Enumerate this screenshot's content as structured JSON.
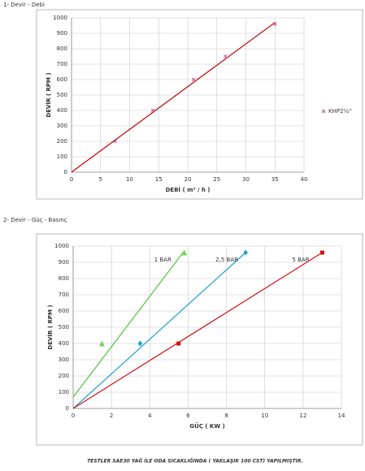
{
  "chart_data": [
    {
      "type": "scatter",
      "title": "1- Devir - Debi",
      "xlabel": "DEBİ ( m³ / h )",
      "ylabel": "DEVİR ( RPM )",
      "xlim": [
        0,
        40
      ],
      "xticks": [
        0,
        5,
        10,
        15,
        20,
        25,
        30,
        35,
        40
      ],
      "ylim": [
        0,
        1000
      ],
      "yticks": [
        0,
        100,
        200,
        300,
        400,
        500,
        600,
        700,
        800,
        900,
        1000
      ],
      "grid": true,
      "legend": "right",
      "series": [
        {
          "name": "KHP2½\"",
          "color": "#c0609a",
          "marker": "x",
          "x": [
            7.5,
            14,
            21,
            26.5,
            35
          ],
          "values": [
            200,
            400,
            600,
            750,
            960
          ],
          "line_color": "#c00000",
          "line_x": [
            0,
            35
          ],
          "line_values": [
            0,
            970
          ]
        }
      ]
    },
    {
      "type": "scatter",
      "title": "2- Devir - Güç - Basınç",
      "xlabel": "GÜÇ ( KW )",
      "ylabel": "DEVİR ( RPM )",
      "xlim": [
        0,
        14
      ],
      "xticks": [
        0,
        2,
        4,
        6,
        8,
        10,
        12,
        14
      ],
      "ylim": [
        0,
        1000
      ],
      "yticks": [
        0,
        100,
        200,
        300,
        400,
        500,
        600,
        700,
        800,
        900,
        1000
      ],
      "grid": true,
      "legend": "inline",
      "series": [
        {
          "name": "1 BAR",
          "color": "#7ccf5a",
          "marker": "triangle",
          "x": [
            1.5,
            5.8
          ],
          "values": [
            400,
            960
          ],
          "line_color": "#4fc43a",
          "line_x": [
            0,
            5.8
          ],
          "line_values": [
            70,
            970
          ]
        },
        {
          "name": "2,5 BAR",
          "color": "#1f9fd0",
          "marker": "diamond",
          "x": [
            3.5,
            9
          ],
          "values": [
            400,
            960
          ],
          "line_color": "#1f9fd0",
          "line_x": [
            0,
            9
          ],
          "line_values": [
            0,
            960
          ]
        },
        {
          "name": "5 BAR",
          "color": "#d01010",
          "marker": "square",
          "x": [
            5.5,
            13
          ],
          "values": [
            400,
            960
          ],
          "line_color": "#d01010",
          "line_x": [
            0,
            13
          ],
          "line_values": [
            0,
            960
          ]
        }
      ]
    }
  ],
  "note": "TESTLER SAE30 YAĞ İLE ODA SICAKLIĞINDA ( YAKLAŞIK 100 CST) YAPILMIŞTIR."
}
